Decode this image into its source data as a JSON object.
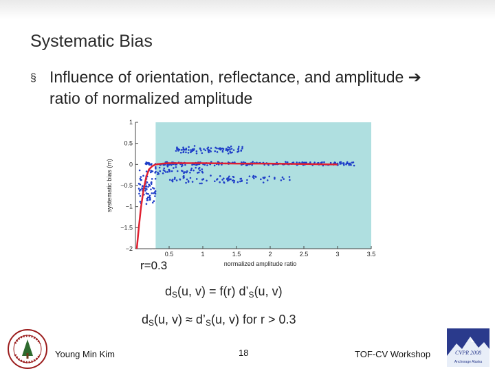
{
  "slide": {
    "title": "Systematic Bias",
    "bullet_marker": "§",
    "bullet_part1": "Influence of orientation, reflectance, and amplitude ",
    "bullet_arrow": "➔",
    "bullet_part2": " ratio of normalized amplitude",
    "r_label": "r=0.3",
    "eq1": {
      "d": "d",
      "sub": "S",
      "rest1": "(u, v) = f(r) d’",
      "sub2": "S",
      "rest2": "(u, v)"
    },
    "eq2": {
      "d": "d",
      "sub": "S",
      "rest1": "(u, v) ≈ d’",
      "sub2": "S",
      "rest2": "(u, v) for r > 0.3"
    }
  },
  "footer": {
    "author": "Young Min Kim",
    "page_number": "18",
    "venue": "TOF-CV Workshop"
  },
  "logos": {
    "cvpr_text": "CVPR 2008",
    "cvpr_sub": "Anchorage Alaska"
  },
  "chart_data": {
    "type": "scatter",
    "xlabel": "normalized amplitude ratio",
    "ylabel": "systematic bias (m)",
    "xlim": [
      0,
      3.5
    ],
    "ylim": [
      -2,
      1
    ],
    "xticks": [
      "0.5",
      "1",
      "1.5",
      "2",
      "2.5",
      "3",
      "3.5"
    ],
    "yticks": [
      "1",
      "0.5",
      "0",
      "−0.5",
      "−1",
      "−1.5",
      "−2"
    ],
    "shaded_region": {
      "from_x": 0.3,
      "to_x": 3.5,
      "color": "#afdfe0"
    },
    "colors": {
      "points": "#1f3fc8",
      "fit": "#e02030"
    },
    "fit_curve": {
      "x": [
        0.02,
        0.05,
        0.08,
        0.12,
        0.16,
        0.2,
        0.25,
        0.3,
        0.4,
        0.5,
        0.7,
        1.0,
        1.5,
        2.0,
        2.5,
        3.0
      ],
      "y": [
        -2.0,
        -1.5,
        -1.05,
        -0.6,
        -0.3,
        -0.12,
        -0.04,
        0.0,
        0.02,
        0.03,
        0.03,
        0.03,
        0.02,
        0.02,
        0.01,
        0.0
      ]
    },
    "scatter_clusters": [
      {
        "x_from": 0.05,
        "x_to": 0.3,
        "y_center": -0.55,
        "y_spread": 0.45,
        "count": 70
      },
      {
        "x_from": 0.15,
        "x_to": 3.25,
        "y_center": 0.02,
        "y_spread": 0.05,
        "count": 260
      },
      {
        "x_from": 0.6,
        "x_to": 1.6,
        "y_center": 0.35,
        "y_spread": 0.1,
        "count": 90
      },
      {
        "x_from": 0.5,
        "x_to": 2.3,
        "y_center": -0.35,
        "y_spread": 0.12,
        "count": 80
      },
      {
        "x_from": 0.2,
        "x_to": 1.0,
        "y_center": -0.15,
        "y_spread": 0.12,
        "count": 50
      }
    ]
  }
}
